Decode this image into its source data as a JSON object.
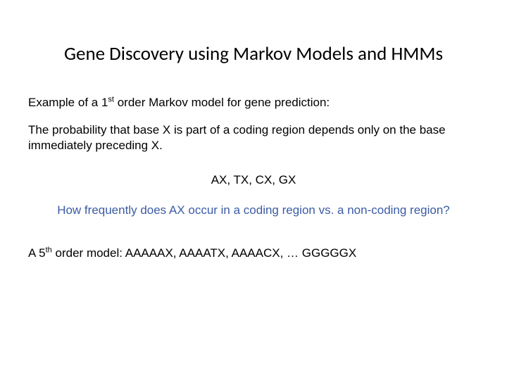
{
  "slide": {
    "title": "Gene Discovery using Markov Models and HMMs",
    "example_line_pre": "Example of a 1",
    "example_sup": "st",
    "example_line_post": " order Markov model for gene prediction:",
    "prob_line": "The probability that base X is part of a coding region depends only on the base immediately preceding X.",
    "pairs": "AX, TX, CX, GX",
    "question": "How frequently does AX occur in a coding region vs. a non-coding region?",
    "fifth_pre": "A 5",
    "fifth_sup": "th",
    "fifth_post": " order model:   AAAAAX, AAAATX, AAAACX, … GGGGGX"
  },
  "colors": {
    "text": "#000000",
    "blue": "#3b5ba5",
    "background": "#ffffff"
  },
  "fonts": {
    "title_family": "Calibri",
    "body_family": "Arial",
    "title_size_pt": 20,
    "body_size_pt": 13
  }
}
